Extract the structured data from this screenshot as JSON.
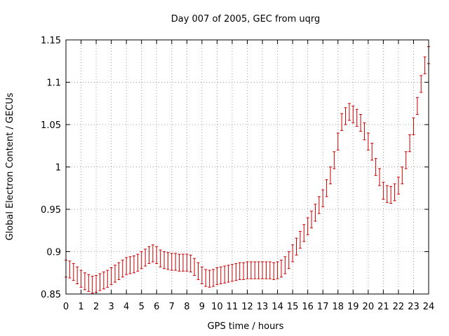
{
  "chart_data": {
    "type": "line",
    "title": "Day 007 of 2005, GEC from uqrg",
    "xlabel": "GPS time / hours",
    "ylabel": "Global Electron Content / GECUs",
    "xlim": [
      0,
      24
    ],
    "ylim": [
      0.85,
      1.15
    ],
    "grid": true,
    "x_ticks": [
      "0",
      "1",
      "2",
      "3",
      "4",
      "5",
      "6",
      "7",
      "8",
      "9",
      "10",
      "11",
      "12",
      "13",
      "14",
      "15",
      "16",
      "17",
      "18",
      "19",
      "20",
      "21",
      "22",
      "23",
      "24"
    ],
    "y_ticks": [
      "0.85",
      "0.9",
      "0.95",
      "1",
      "1.05",
      "1.1",
      "1.15"
    ],
    "series": [
      {
        "color": "#cc0000",
        "error": 0.01,
        "x": [
          0,
          0.25,
          0.5,
          0.75,
          1,
          1.25,
          1.5,
          1.75,
          2,
          2.25,
          2.5,
          2.75,
          3,
          3.25,
          3.5,
          3.75,
          4,
          4.25,
          4.5,
          4.75,
          5,
          5.25,
          5.5,
          5.75,
          6,
          6.25,
          6.5,
          6.75,
          7,
          7.25,
          7.5,
          7.75,
          8,
          8.25,
          8.5,
          8.75,
          9,
          9.25,
          9.5,
          9.75,
          10,
          10.25,
          10.5,
          10.75,
          11,
          11.25,
          11.5,
          11.75,
          12,
          12.25,
          12.5,
          12.75,
          13,
          13.25,
          13.5,
          13.75,
          14,
          14.25,
          14.5,
          14.75,
          15,
          15.25,
          15.5,
          15.75,
          16,
          16.25,
          16.5,
          16.75,
          17,
          17.25,
          17.5,
          17.75,
          18,
          18.25,
          18.5,
          18.75,
          19,
          19.25,
          19.5,
          19.75,
          20,
          20.25,
          20.5,
          20.75,
          21,
          21.25,
          21.5,
          21.75,
          22,
          22.25,
          22.5,
          22.75,
          23,
          23.25,
          23.5,
          23.75,
          24
        ],
        "y": [
          0.88,
          0.879,
          0.876,
          0.872,
          0.868,
          0.865,
          0.863,
          0.861,
          0.862,
          0.864,
          0.866,
          0.868,
          0.871,
          0.874,
          0.877,
          0.88,
          0.883,
          0.884,
          0.885,
          0.887,
          0.89,
          0.893,
          0.896,
          0.898,
          0.896,
          0.892,
          0.89,
          0.889,
          0.888,
          0.888,
          0.887,
          0.887,
          0.887,
          0.886,
          0.882,
          0.877,
          0.872,
          0.869,
          0.868,
          0.869,
          0.871,
          0.872,
          0.873,
          0.874,
          0.875,
          0.876,
          0.877,
          0.877,
          0.878,
          0.878,
          0.878,
          0.878,
          0.878,
          0.878,
          0.878,
          0.877,
          0.878,
          0.88,
          0.884,
          0.89,
          0.898,
          0.906,
          0.914,
          0.922,
          0.93,
          0.938,
          0.946,
          0.955,
          0.963,
          0.975,
          0.99,
          1.008,
          1.03,
          1.053,
          1.06,
          1.065,
          1.062,
          1.058,
          1.052,
          1.042,
          1.03,
          1.018,
          1.0,
          0.988,
          0.972,
          0.968,
          0.967,
          0.97,
          0.978,
          0.99,
          1.008,
          1.028,
          1.048,
          1.072,
          1.098,
          1.12,
          1.132
        ]
      }
    ]
  }
}
